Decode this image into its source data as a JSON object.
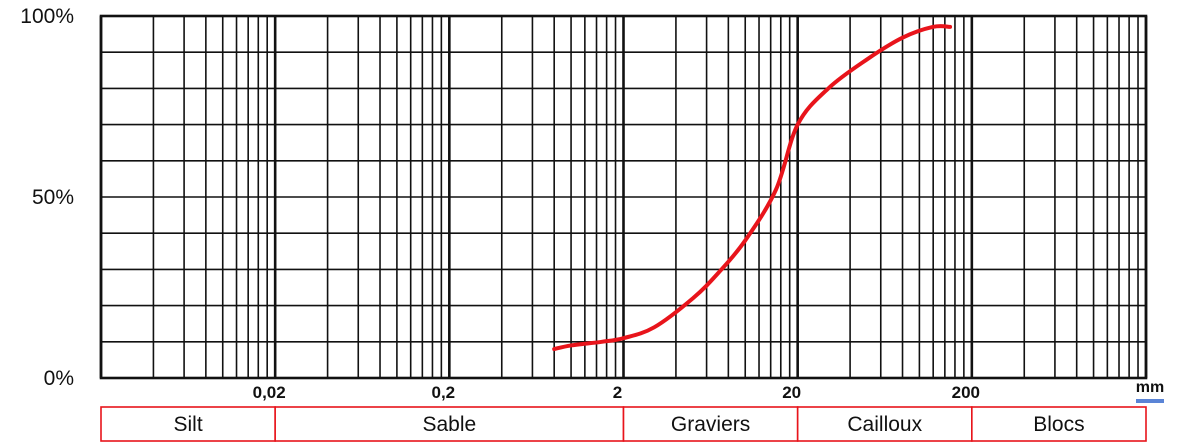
{
  "chart_data": {
    "type": "line",
    "title": "",
    "x_scale": "log",
    "xlim": [
      0.002,
      2000
    ],
    "ylim": [
      0,
      100
    ],
    "grid": true,
    "y_ticks": [
      "0%",
      "50%",
      "100%"
    ],
    "x_ticks": [
      {
        "value": 0.02,
        "label": "0,02"
      },
      {
        "value": 0.2,
        "label": "0,2"
      },
      {
        "value": 2,
        "label": "2"
      },
      {
        "value": 20,
        "label": "20"
      },
      {
        "value": 200,
        "label": "200"
      }
    ],
    "x_unit": "mm",
    "series": [
      {
        "color": "#e8141b",
        "x": [
          0.8,
          1.0,
          1.5,
          2.0,
          3.0,
          5.0,
          7.0,
          10.0,
          15.0,
          20.0,
          30.0,
          50.0,
          80.0,
          120.0,
          150.0
        ],
        "y": [
          8,
          9,
          10,
          11,
          14,
          22,
          29,
          38,
          52,
          70,
          80,
          88,
          94,
          97,
          97
        ]
      }
    ],
    "bands": [
      {
        "label": "Silt",
        "from": 0.002,
        "to": 0.02
      },
      {
        "label": "Sable",
        "from": 0.02,
        "to": 2
      },
      {
        "label": "Graviers",
        "from": 2,
        "to": 20
      },
      {
        "label": "Cailloux",
        "from": 20,
        "to": 200
      },
      {
        "label": "Blocs",
        "from": 200,
        "to": 2000
      }
    ],
    "colors": {
      "curve": "#e8141b",
      "bands_border": "#e8141b",
      "grid": "#111111"
    }
  }
}
